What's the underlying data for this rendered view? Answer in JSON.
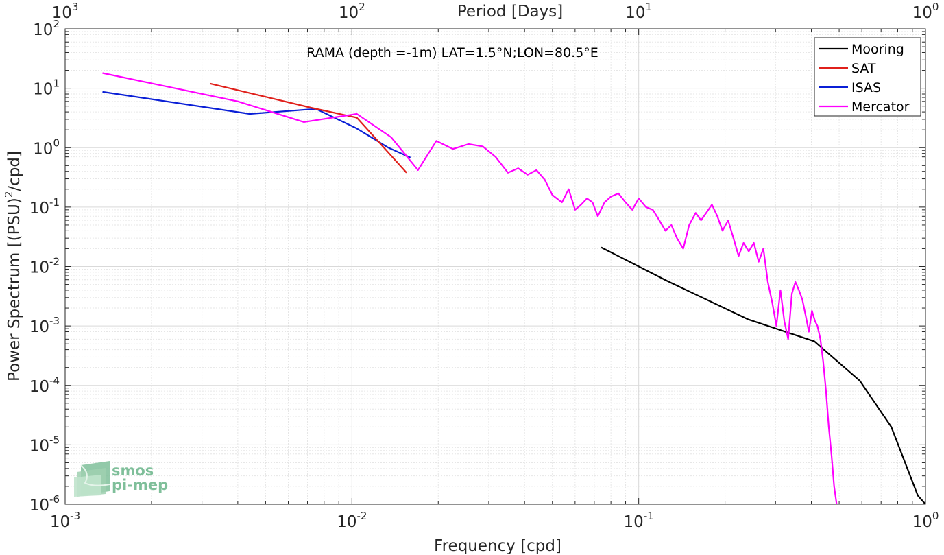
{
  "chart_data": {
    "type": "line",
    "title": "RAMA (depth =-1m) LAT=1.5°N;LON=80.5°E",
    "xlabel": "Frequency [cpd]",
    "ylabel": "Power Spectrum [(PSU)",
    "ylabel_sup": "2",
    "ylabel_tail": "/cpd]",
    "x2label": "Period [Days]",
    "xscale": "log",
    "yscale": "log",
    "xlim": [
      0.001,
      1
    ],
    "ylim": [
      1e-06,
      100
    ],
    "grid": true,
    "legend_position": "top-right",
    "x_ticks": [
      {
        "base": "10",
        "exp": "-3",
        "value": 0.001
      },
      {
        "base": "10",
        "exp": "-2",
        "value": 0.01
      },
      {
        "base": "10",
        "exp": "-1",
        "value": 0.1
      },
      {
        "base": "10",
        "exp": "0",
        "value": 1
      }
    ],
    "y_ticks": [
      {
        "base": "10",
        "exp": "2",
        "value": 100
      },
      {
        "base": "10",
        "exp": "1",
        "value": 10
      },
      {
        "base": "10",
        "exp": "0",
        "value": 1
      },
      {
        "base": "10",
        "exp": "-1",
        "value": 0.1
      },
      {
        "base": "10",
        "exp": "-2",
        "value": 0.01
      },
      {
        "base": "10",
        "exp": "-3",
        "value": 0.001
      },
      {
        "base": "10",
        "exp": "-4",
        "value": 0.0001
      },
      {
        "base": "10",
        "exp": "-5",
        "value": 1e-05
      },
      {
        "base": "10",
        "exp": "-6",
        "value": 1e-06
      }
    ],
    "x2_ticks": [
      {
        "base": "10",
        "exp": "3",
        "value": 0.001
      },
      {
        "base": "10",
        "exp": "2",
        "value": 0.01
      },
      {
        "base": "10",
        "exp": "1",
        "value": 0.1
      },
      {
        "base": "10",
        "exp": "0",
        "value": 1
      }
    ],
    "series": [
      {
        "name": "Mooring",
        "color": "#000000",
        "x": [
          0.074,
          0.125,
          0.24,
          0.41,
          0.59,
          0.76,
          0.94,
          1.0
        ],
        "y": [
          0.021,
          0.0058,
          0.0013,
          0.00055,
          0.00012,
          2e-05,
          1.4e-06,
          1e-06
        ]
      },
      {
        "name": "SAT",
        "color": "#e0201b",
        "x": [
          0.0032,
          0.0072,
          0.0104,
          0.0155
        ],
        "y": [
          12,
          4.7,
          3.2,
          0.38
        ]
      },
      {
        "name": "ISAS",
        "color": "#0a1fd6",
        "x": [
          0.00135,
          0.0044,
          0.0075,
          0.0104,
          0.0134,
          0.016
        ],
        "y": [
          8.7,
          3.7,
          4.5,
          2.1,
          1.0,
          0.68
        ]
      },
      {
        "name": "Mercator",
        "color": "#ff00ff",
        "x": [
          0.00135,
          0.004,
          0.0068,
          0.0104,
          0.0137,
          0.017,
          0.0197,
          0.0225,
          0.0255,
          0.0286,
          0.0317,
          0.035,
          0.038,
          0.041,
          0.044,
          0.047,
          0.05,
          0.054,
          0.057,
          0.06,
          0.063,
          0.066,
          0.069,
          0.072,
          0.076,
          0.08,
          0.085,
          0.09,
          0.095,
          0.1,
          0.106,
          0.112,
          0.118,
          0.124,
          0.13,
          0.136,
          0.143,
          0.15,
          0.158,
          0.165,
          0.172,
          0.18,
          0.188,
          0.196,
          0.205,
          0.214,
          0.223,
          0.232,
          0.242,
          0.252,
          0.262,
          0.272,
          0.282,
          0.292,
          0.302,
          0.312,
          0.322,
          0.332,
          0.342,
          0.352,
          0.362,
          0.372,
          0.382,
          0.392,
          0.402,
          0.412,
          0.42,
          0.43,
          0.44,
          0.45,
          0.46,
          0.47,
          0.48,
          0.49
        ],
        "y": [
          18,
          6,
          2.7,
          3.7,
          1.5,
          0.42,
          1.3,
          0.95,
          1.15,
          1.05,
          0.7,
          0.38,
          0.45,
          0.35,
          0.42,
          0.29,
          0.16,
          0.12,
          0.2,
          0.09,
          0.11,
          0.14,
          0.12,
          0.07,
          0.12,
          0.15,
          0.17,
          0.12,
          0.09,
          0.14,
          0.1,
          0.09,
          0.06,
          0.04,
          0.05,
          0.03,
          0.02,
          0.05,
          0.08,
          0.06,
          0.08,
          0.11,
          0.07,
          0.04,
          0.06,
          0.03,
          0.015,
          0.025,
          0.018,
          0.025,
          0.012,
          0.02,
          0.0055,
          0.0025,
          0.001,
          0.004,
          0.0012,
          0.0006,
          0.0035,
          0.0055,
          0.004,
          0.0028,
          0.0015,
          0.0008,
          0.0018,
          0.0012,
          0.001,
          0.0006,
          0.00025,
          8e-05,
          2e-05,
          7e-06,
          2e-06,
          1e-06
        ]
      }
    ]
  },
  "logo": {
    "line1": "smos",
    "line2": "pi-mep"
  }
}
